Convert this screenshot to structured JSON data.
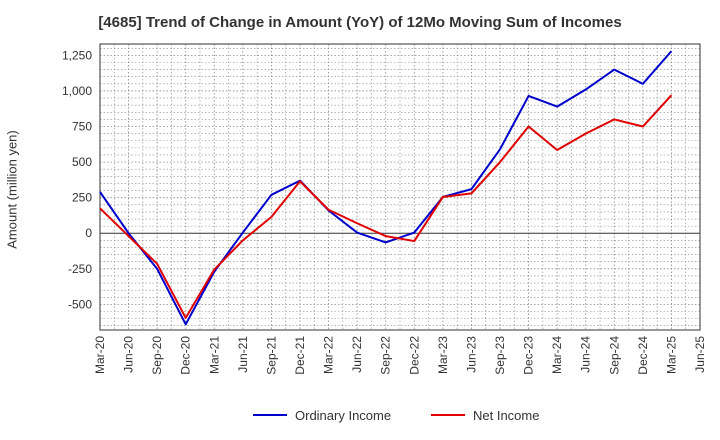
{
  "colors": {
    "ordinary_income": "#0000cc",
    "net_income": "#e00000",
    "grid": "#888888",
    "axis": "#333333"
  },
  "chart_data": {
    "type": "line",
    "title": "[4685]  Trend of Change in Amount (YoY) of 12Mo Moving Sum of Incomes",
    "xlabel": "",
    "ylabel": "Amount (million yen)",
    "ylim": [
      -680,
      1330
    ],
    "yticks": [
      1250,
      1000,
      750,
      500,
      250,
      0,
      -250,
      -500
    ],
    "ytick_labels": [
      "1,250",
      "1,000",
      "750",
      "500",
      "250",
      "0",
      "-250",
      "-500"
    ],
    "grid": true,
    "legend_position": "bottom-center",
    "x": [
      "Mar-20",
      "Jun-20",
      "Sep-20",
      "Dec-20",
      "Mar-21",
      "Jun-21",
      "Sep-21",
      "Dec-21",
      "Mar-22",
      "Jun-22",
      "Sep-22",
      "Dec-22",
      "Mar-23",
      "Jun-23",
      "Sep-23",
      "Dec-23",
      "Mar-24",
      "Jun-24",
      "Sep-24",
      "Dec-24",
      "Mar-25",
      "Jun-25"
    ],
    "series": [
      {
        "name": "Ordinary Income",
        "values": [
          290,
          0,
          -250,
          -640,
          -270,
          5,
          270,
          370,
          160,
          5,
          -65,
          5,
          255,
          310,
          590,
          965,
          890,
          1010,
          1150,
          1050,
          1280,
          null
        ]
      },
      {
        "name": "Net Income",
        "values": [
          175,
          -20,
          -215,
          -595,
          -255,
          -50,
          115,
          365,
          165,
          70,
          -20,
          -55,
          255,
          280,
          500,
          750,
          585,
          700,
          800,
          750,
          970,
          null
        ]
      }
    ]
  }
}
